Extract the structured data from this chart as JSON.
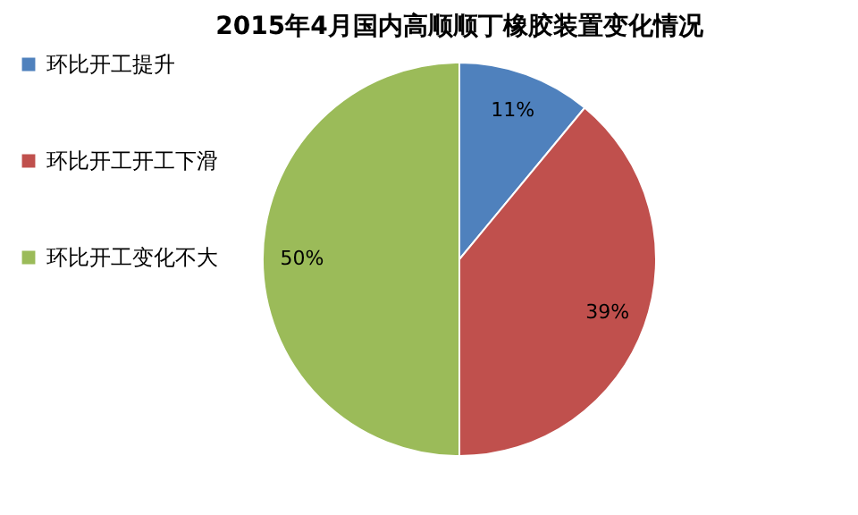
{
  "chart_data": {
    "type": "pie",
    "title": "2015年4月国内高顺顺丁橡胶装置变化情况",
    "categories": [
      "环比开工提升",
      "环比开工开工下滑",
      "环比开工变化不大"
    ],
    "values": [
      11,
      39,
      50
    ],
    "colors": [
      "#4f81bd",
      "#c0504d",
      "#9bbb59"
    ],
    "value_labels": [
      "11%",
      "39%",
      "50%"
    ],
    "legend": "left"
  }
}
